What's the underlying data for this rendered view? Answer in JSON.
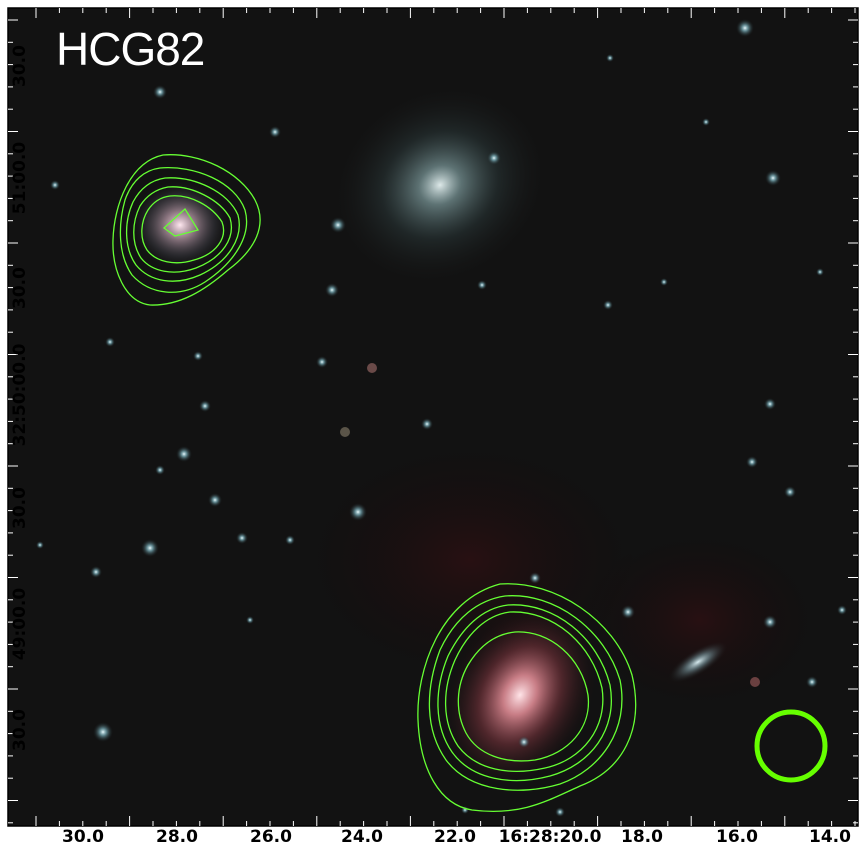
{
  "image": {
    "title": "HCG82",
    "x_ticks": [
      "30.0",
      "28.0",
      "26.0",
      "24.0",
      "22.0",
      "16:28:20.0",
      "18.0",
      "16.0",
      "14.0"
    ],
    "y_ticks": [
      "30.0",
      "51:00.0",
      "30.0",
      "32:50:00.0",
      "30.0",
      "49:00.0",
      "30.0"
    ],
    "contour_color": "#66ff33",
    "beam_color": "#66ff00",
    "frame_color": "#000000"
  }
}
